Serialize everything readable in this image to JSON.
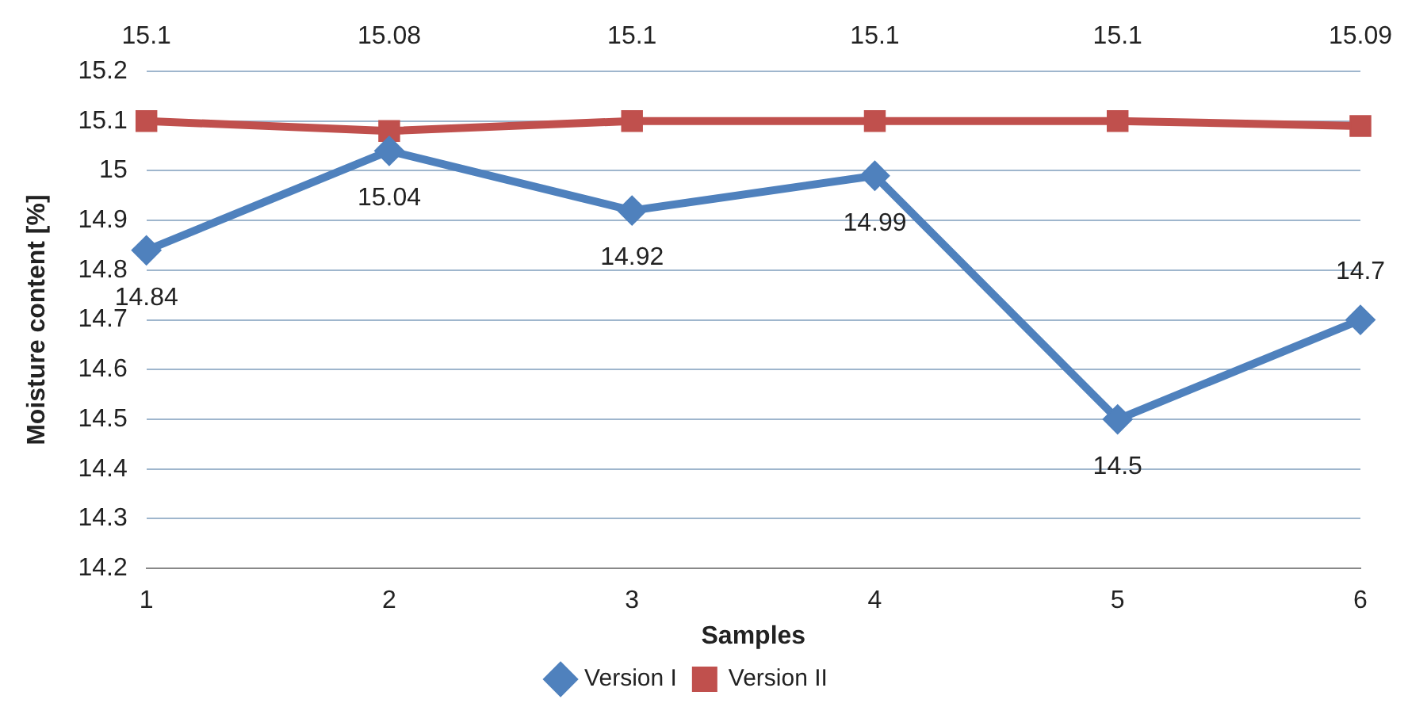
{
  "chart_data": {
    "type": "line",
    "xlabel": "Samples",
    "ylabel": "Moisture content [%]",
    "categories": [
      "1",
      "2",
      "3",
      "4",
      "5",
      "6"
    ],
    "series": [
      {
        "name": "Version I",
        "color": "#4f81bd",
        "marker": "diamond",
        "values": [
          14.84,
          15.04,
          14.92,
          14.99,
          14.5,
          14.7
        ]
      },
      {
        "name": "Version II",
        "color": "#c0504d",
        "marker": "square",
        "values": [
          15.1,
          15.08,
          15.1,
          15.1,
          15.1,
          15.09
        ]
      }
    ],
    "ylim": [
      14.2,
      15.2
    ],
    "yticks": [
      14.2,
      14.3,
      14.4,
      14.5,
      14.6,
      14.7,
      14.8,
      14.9,
      15,
      15.1,
      15.2
    ],
    "grid": "y",
    "legend": "bottom",
    "data_labels": true,
    "line_style": "solid"
  }
}
